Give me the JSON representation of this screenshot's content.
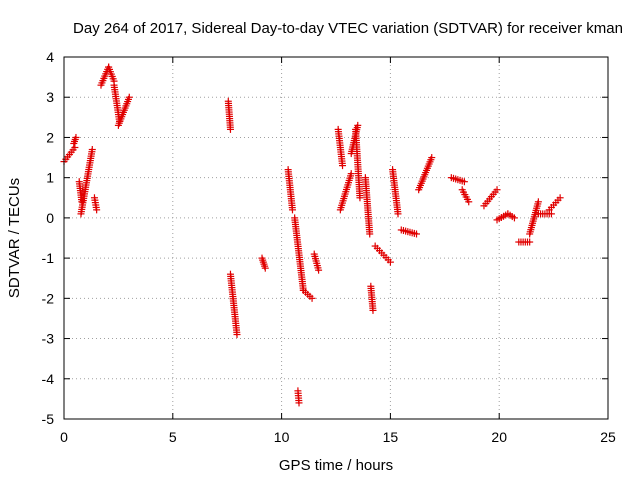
{
  "chart_data": {
    "type": "scatter",
    "title": "Day 264 of 2017, Sidereal Day-to-day VTEC variation (SDTVAR) for receiver kman",
    "xlabel": "GPS time / hours",
    "ylabel": "SDTVAR / TECUs",
    "xlim": [
      0,
      25
    ],
    "ylim": [
      -5,
      4
    ],
    "xticks": [
      0,
      5,
      10,
      15,
      20,
      25
    ],
    "yticks": [
      -5,
      -4,
      -3,
      -2,
      -1,
      0,
      1,
      2,
      3,
      4
    ],
    "grid": true,
    "marker": "+",
    "color": "#e00000",
    "segments": [
      {
        "x0": 0.0,
        "x1": 0.5,
        "y0": 1.4,
        "y1": 1.75
      },
      {
        "x0": 0.45,
        "x1": 0.55,
        "y0": 1.85,
        "y1": 2.0
      },
      {
        "x0": 0.7,
        "x1": 0.82,
        "y0": 0.9,
        "y1": 0.4
      },
      {
        "x0": 0.78,
        "x1": 1.3,
        "y0": 0.1,
        "y1": 1.7
      },
      {
        "x0": 1.4,
        "x1": 1.5,
        "y0": 0.5,
        "y1": 0.2
      },
      {
        "x0": 1.7,
        "x1": 2.05,
        "y0": 3.3,
        "y1": 3.75
      },
      {
        "x0": 2.05,
        "x1": 2.3,
        "y0": 3.75,
        "y1": 3.4
      },
      {
        "x0": 2.3,
        "x1": 2.55,
        "y0": 3.3,
        "y1": 2.4
      },
      {
        "x0": 2.5,
        "x1": 3.0,
        "y0": 2.3,
        "y1": 3.0
      },
      {
        "x0": 7.55,
        "x1": 7.65,
        "y0": 2.9,
        "y1": 2.2
      },
      {
        "x0": 7.65,
        "x1": 7.95,
        "y0": -1.4,
        "y1": -2.9
      },
      {
        "x0": 9.1,
        "x1": 9.25,
        "y0": -1.0,
        "y1": -1.25
      },
      {
        "x0": 10.3,
        "x1": 10.5,
        "y0": 1.2,
        "y1": 0.2
      },
      {
        "x0": 10.6,
        "x1": 11.0,
        "y0": 0.0,
        "y1": -1.8
      },
      {
        "x0": 11.0,
        "x1": 11.4,
        "y0": -1.8,
        "y1": -2.0
      },
      {
        "x0": 10.75,
        "x1": 10.8,
        "y0": -4.3,
        "y1": -4.6
      },
      {
        "x0": 11.5,
        "x1": 11.7,
        "y0": -0.9,
        "y1": -1.3
      },
      {
        "x0": 12.6,
        "x1": 12.8,
        "y0": 2.2,
        "y1": 1.3
      },
      {
        "x0": 12.7,
        "x1": 13.2,
        "y0": 0.2,
        "y1": 1.1
      },
      {
        "x0": 13.2,
        "x1": 13.5,
        "y0": 1.6,
        "y1": 2.3
      },
      {
        "x0": 13.4,
        "x1": 13.6,
        "y0": 2.2,
        "y1": 0.5
      },
      {
        "x0": 13.85,
        "x1": 14.05,
        "y0": 1.0,
        "y1": -0.4
      },
      {
        "x0": 14.1,
        "x1": 14.2,
        "y0": -1.7,
        "y1": -2.3
      },
      {
        "x0": 14.3,
        "x1": 15.0,
        "y0": -0.7,
        "y1": -1.1
      },
      {
        "x0": 15.1,
        "x1": 15.35,
        "y0": 1.2,
        "y1": 0.1
      },
      {
        "x0": 15.5,
        "x1": 16.2,
        "y0": -0.3,
        "y1": -0.4
      },
      {
        "x0": 16.3,
        "x1": 16.9,
        "y0": 0.7,
        "y1": 1.5
      },
      {
        "x0": 17.8,
        "x1": 18.4,
        "y0": 1.0,
        "y1": 0.9
      },
      {
        "x0": 18.3,
        "x1": 18.6,
        "y0": 0.7,
        "y1": 0.4
      },
      {
        "x0": 19.3,
        "x1": 19.9,
        "y0": 0.3,
        "y1": 0.7
      },
      {
        "x0": 19.9,
        "x1": 20.4,
        "y0": -0.05,
        "y1": 0.1
      },
      {
        "x0": 20.4,
        "x1": 20.7,
        "y0": 0.1,
        "y1": 0.0
      },
      {
        "x0": 20.9,
        "x1": 21.4,
        "y0": -0.6,
        "y1": -0.6
      },
      {
        "x0": 21.4,
        "x1": 21.8,
        "y0": -0.4,
        "y1": 0.4
      },
      {
        "x0": 21.8,
        "x1": 22.4,
        "y0": 0.1,
        "y1": 0.1
      },
      {
        "x0": 22.3,
        "x1": 22.8,
        "y0": 0.2,
        "y1": 0.5
      }
    ]
  }
}
